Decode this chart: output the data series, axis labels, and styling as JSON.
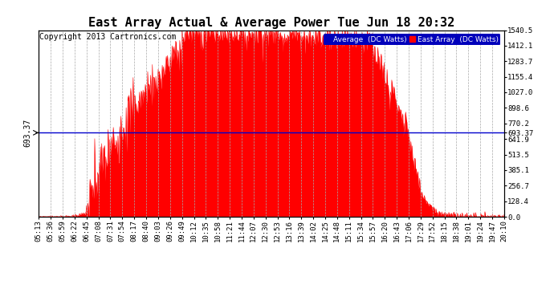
{
  "title": "East Array Actual & Average Power Tue Jun 18 20:32",
  "copyright": "Copyright 2013 Cartronics.com",
  "legend_labels": [
    "Average  (DC Watts)",
    "East Array  (DC Watts)"
  ],
  "legend_colors": [
    "#0000bb",
    "#ff0000"
  ],
  "y_right_ticks": [
    0.0,
    128.4,
    256.7,
    385.1,
    513.5,
    641.9,
    770.2,
    898.6,
    1027.0,
    1155.4,
    1283.7,
    1412.1,
    1540.5
  ],
  "average_line_y": 693.37,
  "average_line_color": "#0000cc",
  "fill_color": "#ff0000",
  "background_color": "#ffffff",
  "grid_color": "#aaaaaa",
  "ymax": 1540.5,
  "ymin": 0.0,
  "title_fontsize": 11,
  "copyright_fontsize": 7,
  "tick_fontsize": 6.5,
  "time_labels": [
    "05:13",
    "05:36",
    "05:59",
    "06:22",
    "06:45",
    "07:08",
    "07:31",
    "07:54",
    "08:17",
    "08:40",
    "09:03",
    "09:26",
    "09:49",
    "10:12",
    "10:35",
    "10:58",
    "11:21",
    "11:44",
    "12:07",
    "12:30",
    "12:53",
    "13:16",
    "13:39",
    "14:02",
    "14:25",
    "14:48",
    "15:11",
    "15:34",
    "15:57",
    "16:20",
    "16:43",
    "17:06",
    "17:29",
    "17:52",
    "18:15",
    "18:38",
    "19:01",
    "19:24",
    "19:47",
    "20:10"
  ]
}
